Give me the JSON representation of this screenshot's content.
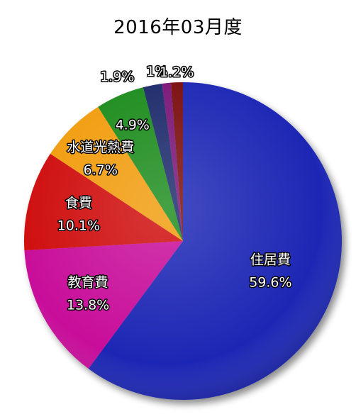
{
  "chart_data": {
    "type": "pie",
    "title": "2016年03月度",
    "slices": [
      {
        "label": "住居費",
        "value": 59.6,
        "value_label": "59.6%",
        "color": "#1a28b4"
      },
      {
        "label": "教育費",
        "value": 13.8,
        "value_label": "13.8%",
        "color": "#c8109a"
      },
      {
        "label": "食費",
        "value": 10.1,
        "value_label": "10.1%",
        "color": "#cf0b0b"
      },
      {
        "label": "水道光熱費",
        "value": 6.7,
        "value_label": "6.7%",
        "color": "#f19c0b"
      },
      {
        "label": "",
        "value": 4.9,
        "value_label": "4.9%",
        "color": "#1b8c1b"
      },
      {
        "label": "",
        "value": 1.9,
        "value_label": "1.9%",
        "color": "#1e2a6b"
      },
      {
        "label": "",
        "value": 0.9,
        "value_label": "1%",
        "color": "#7a1378"
      },
      {
        "label": "",
        "value": 1.2,
        "value_label": "1.2%",
        "color": "#7a0a0a"
      }
    ]
  }
}
